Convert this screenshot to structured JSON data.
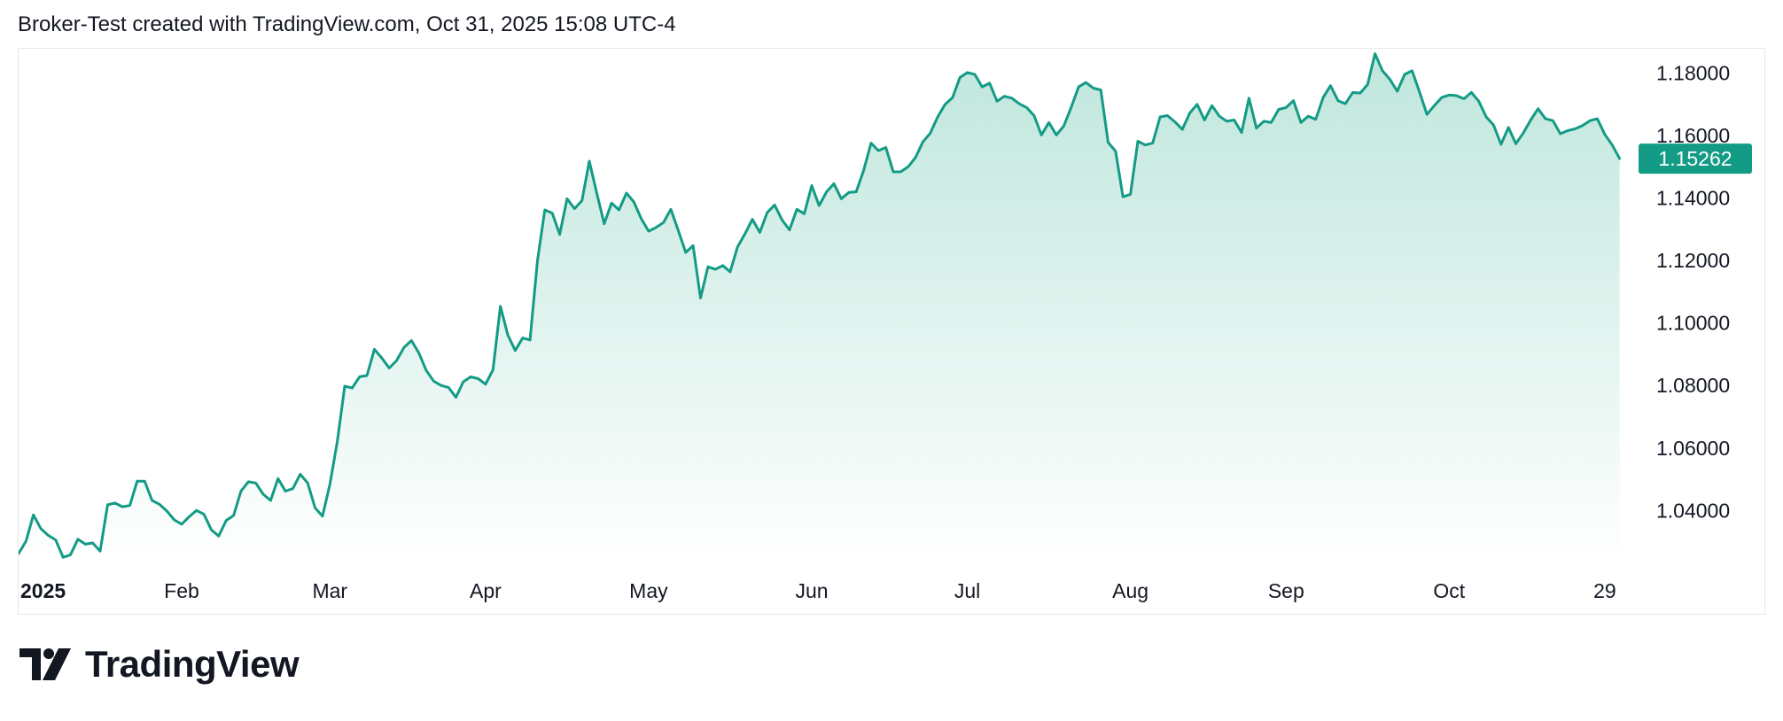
{
  "header": {
    "caption": "Broker-Test created with TradingView.com, Oct 31, 2025 15:08 UTC-4"
  },
  "branding": {
    "name": "TradingView",
    "logo_icon": "tradingview-logo-icon"
  },
  "colors": {
    "line": "#139b85",
    "area_top": "#bfe6dc",
    "area_bottom": "#ffffff",
    "price_badge": "#139b85",
    "text": "#131722",
    "border": "#e6e7ea"
  },
  "chart_data": {
    "type": "area",
    "title": "",
    "xlabel": "",
    "ylabel": "",
    "ylim": [
      1.02336,
      1.18782
    ],
    "xlim": [
      0,
      217
    ],
    "grid": false,
    "last_value_label": "1.15262",
    "y_ticks": [
      "1.04000",
      "1.06000",
      "1.08000",
      "1.10000",
      "1.12000",
      "1.14000",
      "1.16000",
      "1.18000"
    ],
    "y_tick_values": [
      1.04,
      1.06,
      1.08,
      1.1,
      1.12,
      1.14,
      1.16,
      1.18
    ],
    "x_ticks": [
      {
        "label": "2025",
        "day": 0,
        "bold": true
      },
      {
        "label": "Feb",
        "day": 22
      },
      {
        "label": "Mar",
        "day": 42
      },
      {
        "label": "Apr",
        "day": 63
      },
      {
        "label": "May",
        "day": 85
      },
      {
        "label": "Jun",
        "day": 107
      },
      {
        "label": "Jul",
        "day": 128
      },
      {
        "label": "Aug",
        "day": 150
      },
      {
        "label": "Sep",
        "day": 171
      },
      {
        "label": "Oct",
        "day": 193
      },
      {
        "label": "29",
        "day": 214
      }
    ],
    "series": [
      {
        "values": [
          1.0262,
          1.0302,
          1.0386,
          1.0342,
          1.032,
          1.0306,
          1.025,
          1.0258,
          1.0308,
          1.0292,
          1.0296,
          1.027,
          1.0418,
          1.0424,
          1.0412,
          1.0416,
          1.0494,
          1.0494,
          1.0432,
          1.042,
          1.0398,
          1.037,
          1.0356,
          1.038,
          1.04,
          1.0388,
          1.0338,
          1.0318,
          1.0368,
          1.0384,
          1.0462,
          1.0492,
          1.0488,
          1.0452,
          1.0432,
          1.0502,
          1.0462,
          1.047,
          1.0516,
          1.0488,
          1.0408,
          1.0382,
          1.0484,
          1.0622,
          1.0798,
          1.0792,
          1.0828,
          1.0832,
          1.0916,
          1.0888,
          1.0856,
          1.088,
          1.0922,
          1.0944,
          1.0904,
          1.0848,
          1.0814,
          1.08,
          1.0794,
          1.0762,
          1.0812,
          1.0828,
          1.0822,
          1.0804,
          1.085,
          1.1054,
          1.0962,
          1.0912,
          1.0952,
          1.0946,
          1.12,
          1.1362,
          1.1352,
          1.1284,
          1.1398,
          1.1366,
          1.1392,
          1.1518,
          1.1416,
          1.1318,
          1.1384,
          1.1362,
          1.1416,
          1.1388,
          1.1334,
          1.1294,
          1.1306,
          1.1322,
          1.1364,
          1.1296,
          1.1226,
          1.1248,
          1.108,
          1.118,
          1.1172,
          1.1184,
          1.1164,
          1.1244,
          1.1286,
          1.1332,
          1.129,
          1.1354,
          1.1378,
          1.133,
          1.1298,
          1.1364,
          1.135,
          1.144,
          1.1376,
          1.142,
          1.1446,
          1.1398,
          1.1418,
          1.142,
          1.1488,
          1.1576,
          1.1552,
          1.1562,
          1.1484,
          1.1484,
          1.15,
          1.153,
          1.158,
          1.1608,
          1.166,
          1.17,
          1.1722,
          1.1786,
          1.1802,
          1.1796,
          1.1756,
          1.1768,
          1.171,
          1.1726,
          1.172,
          1.1702,
          1.169,
          1.1664,
          1.1602,
          1.1642,
          1.1602,
          1.163,
          1.169,
          1.1756,
          1.177,
          1.1752,
          1.1746,
          1.1578,
          1.155,
          1.1404,
          1.1412,
          1.1582,
          1.157,
          1.1576,
          1.166,
          1.1664,
          1.1644,
          1.162,
          1.1672,
          1.17,
          1.165,
          1.1696,
          1.1662,
          1.1646,
          1.165,
          1.161,
          1.172,
          1.1624,
          1.1646,
          1.1642,
          1.1684,
          1.169,
          1.1712,
          1.1642,
          1.1662,
          1.1652,
          1.1722,
          1.176,
          1.1712,
          1.1702,
          1.1738,
          1.1736,
          1.1764,
          1.1862,
          1.1808,
          1.178,
          1.1742,
          1.1796,
          1.1808,
          1.174,
          1.1668,
          1.1696,
          1.1722,
          1.173,
          1.1728,
          1.1718,
          1.1738,
          1.171,
          1.166,
          1.1634,
          1.1572,
          1.1626,
          1.1574,
          1.1608,
          1.165,
          1.1686,
          1.1654,
          1.1648,
          1.1606,
          1.1616,
          1.1622,
          1.1632,
          1.1648,
          1.1654,
          1.1604,
          1.157,
          1.15262
        ]
      }
    ]
  }
}
